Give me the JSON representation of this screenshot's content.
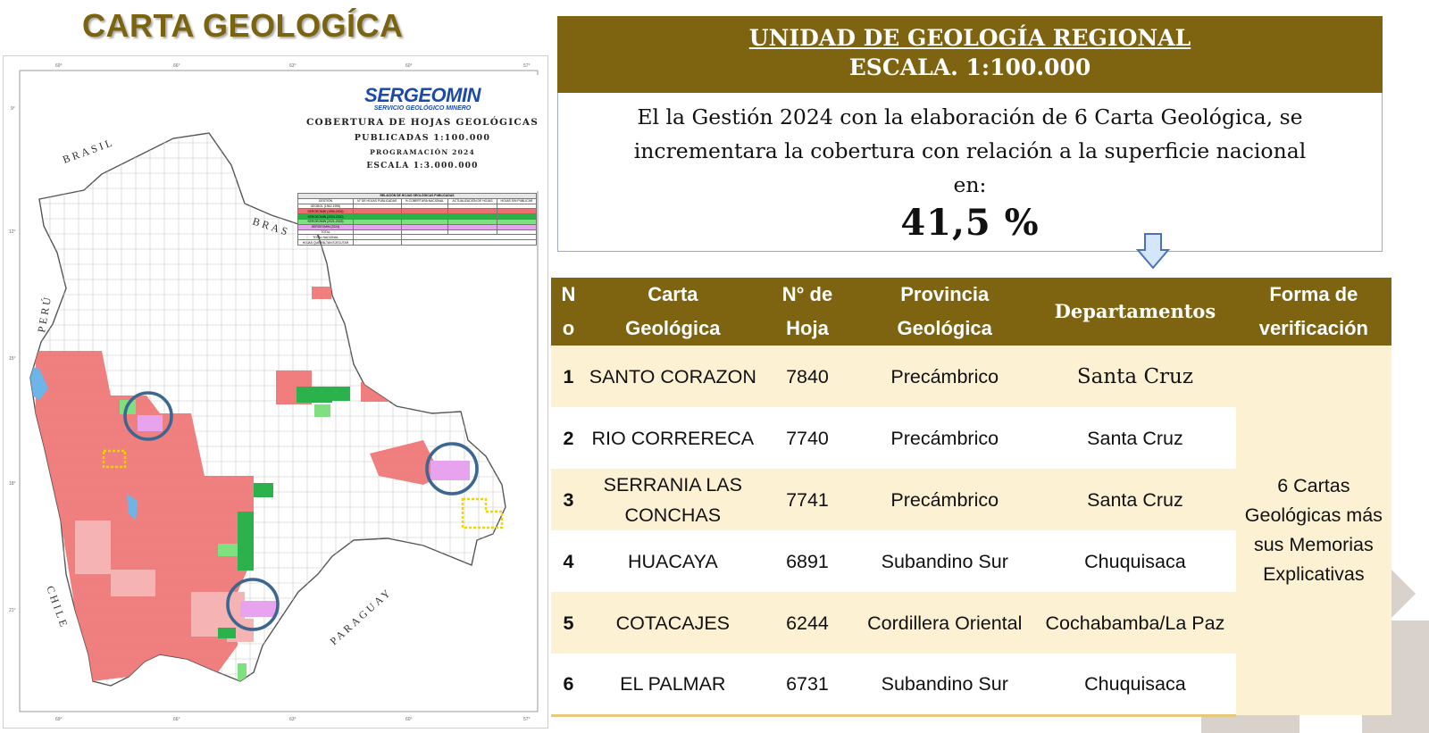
{
  "map_panel": {
    "title": "CARTA GEOLOGÍCA",
    "logo_name": "SERGEOMIN",
    "logo_sub": "SERVICIO GEOLÓGICO MINERO",
    "legend_lines": [
      "COBERTURA DE HOJAS GEOLÓGICAS",
      "PUBLICADAS 1:100.000",
      "PROGRAMACIÓN 2024",
      "ESCALA 1:3.000.000"
    ],
    "neighbors": {
      "brasil_north": "BRASIL",
      "brasil_east": "BRAS",
      "peru": "PERÚ",
      "chile": "CHILE",
      "paraguay": "PARAGUAY"
    },
    "summary_table": {
      "caption": "RELACIÓN DE HOJAS GEOLÓGICAS PUBLICADAS",
      "headers": [
        "GESTIÓN",
        "N° DE HOJAS PUBLICADAS",
        "% COBERTURA NACIONAL",
        "ACTUALIZACIÓN DE HOJAS",
        "HOJAS SIN PUBLICAR"
      ],
      "rows": [
        {
          "label": "GEOBOL (1962-1995)",
          "values": [
            "",
            "",
            "",
            ""
          ],
          "color": "#ffffff"
        },
        {
          "label": "SERGEOMIN (1996-2003)",
          "values": [
            "",
            "",
            "",
            ""
          ],
          "color": "#ef6f6f"
        },
        {
          "label": "SERGEOMIN (2004-2020)",
          "values": [
            "",
            "",
            "",
            ""
          ],
          "color": "#2bb24c"
        },
        {
          "label": "SERGEOMIN (2021-2023)",
          "values": [
            "",
            "",
            "",
            ""
          ],
          "color": "#7fe07f"
        },
        {
          "label": "SERGEOMIN (2024)",
          "values": [
            "",
            "",
            "",
            ""
          ],
          "color": "#e8a3ee"
        },
        {
          "label": "TOTAL",
          "values": [
            "",
            "",
            "",
            ""
          ],
          "color": "#ffffff"
        }
      ],
      "footer": [
        {
          "label": "TOTAL NACIONAL",
          "value": ""
        },
        {
          "label": "HOJAS QUE FALTAN EJECUTAR",
          "value": ""
        }
      ]
    }
  },
  "header": {
    "line1": "UNIDAD DE GEOLOGÍA REGIONAL",
    "line2": "ESCALA. 1:100.000"
  },
  "info": {
    "line1": "El la Gestión 2024 con la elaboración de 6 Carta Geológica, se",
    "line2": "incrementara la cobertura con relación a la superficie nacional",
    "line3": "en:",
    "percentage": "41,5 %"
  },
  "table": {
    "headers": {
      "num_a": "N",
      "num_b": "o",
      "carta_a": "Carta",
      "carta_b": "Geológica",
      "hoja_a": "N° de",
      "hoja_b": "Hoja",
      "prov_a": "Provincia",
      "prov_b": "Geológica",
      "dep": "Departamentos",
      "verif_a": "Forma de",
      "verif_b": "verificación"
    },
    "rows": [
      {
        "n": "1",
        "carta": "SANTO CORAZON",
        "hoja": "7840",
        "provincia": "Precámbrico",
        "departamento": "Santa Cruz"
      },
      {
        "n": "2",
        "carta": "RIO CORRERECA",
        "hoja": "7740",
        "provincia": "Precámbrico",
        "departamento": "Santa Cruz"
      },
      {
        "n": "3",
        "carta": "SERRANIA LAS CONCHAS",
        "hoja": "7741",
        "provincia": "Precámbrico",
        "departamento": "Santa Cruz"
      },
      {
        "n": "4",
        "carta": "HUACAYA",
        "hoja": "6891",
        "provincia": "Subandino Sur",
        "departamento": "Chuquisaca"
      },
      {
        "n": "5",
        "carta": "COTACAJES",
        "hoja": "6244",
        "provincia": "Cordillera Oriental",
        "departamento": "Cochabamba/La Paz"
      },
      {
        "n": "6",
        "carta": "EL PALMAR",
        "hoja": "6731",
        "provincia": "Subandino Sur",
        "departamento": "Chuquisaca"
      }
    ],
    "verification": "6 Cartas Geológicas más sus Memorias Explicativas"
  },
  "colors": {
    "brand": "#7e6310",
    "row_alt": "#fdf1d3",
    "map_published": "#ef6f6f",
    "map_green": "#2bb24c",
    "map_2024": "#e8a3ee",
    "circle": "#3d6690"
  }
}
